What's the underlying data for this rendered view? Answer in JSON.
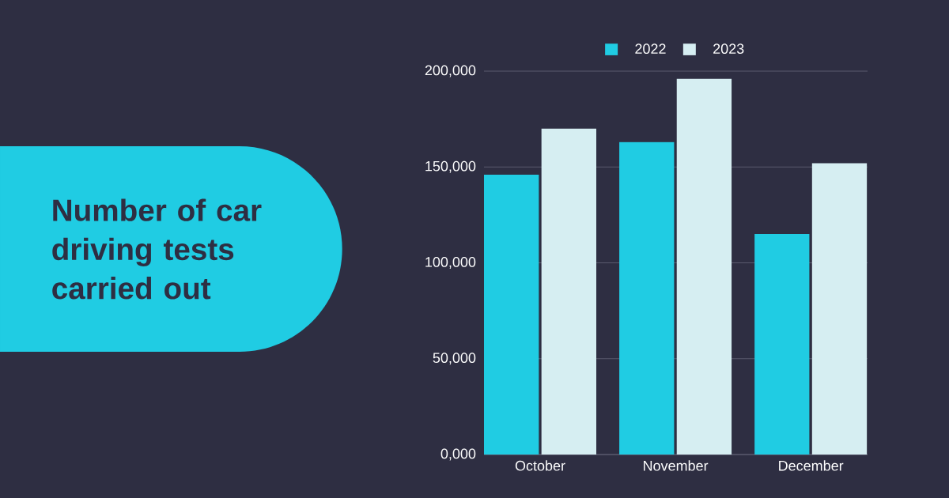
{
  "chart_data": {
    "type": "bar",
    "title": "Number of car driving tests carried out",
    "categories": [
      "October",
      "November",
      "December"
    ],
    "series": [
      {
        "name": "2022",
        "color": "#20cce3",
        "values": [
          146000,
          163000,
          115000
        ]
      },
      {
        "name": "2023",
        "color": "#d6eef2",
        "values": [
          170000,
          196000,
          152000
        ]
      }
    ],
    "ylim": [
      0,
      200000
    ],
    "yticks": [
      {
        "value": 0,
        "label": "0,000"
      },
      {
        "value": 50000,
        "label": "50,000"
      },
      {
        "value": 100000,
        "label": "100,000"
      },
      {
        "value": 150000,
        "label": "150,000"
      },
      {
        "value": 200000,
        "label": "200,000"
      }
    ],
    "grid": "y",
    "legend": "top"
  }
}
